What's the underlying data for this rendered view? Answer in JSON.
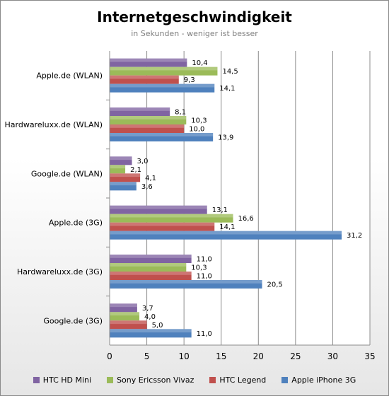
{
  "chart_data": {
    "type": "bar",
    "orientation": "horizontal",
    "title": "Internetgeschwindigkeit",
    "subtitle": "in Sekunden - weniger ist besser",
    "categories": [
      "Apple.de (WLAN)",
      "Hardwareluxx.de (WLAN)",
      "Google.de (WLAN)",
      "Apple.de (3G)",
      "Hardwareluxx.de (3G)",
      "Google.de (3G)"
    ],
    "series": [
      {
        "name": "HTC HD Mini",
        "color": "#8064a2",
        "values": [
          10.4,
          8.1,
          3.0,
          13.1,
          11.0,
          3.7
        ],
        "labels": [
          "10,4",
          "8,1",
          "3,0",
          "13,1",
          "11,0",
          "3,7"
        ]
      },
      {
        "name": "Sony Ericsson Vivaz",
        "color": "#9bbb59",
        "values": [
          14.5,
          10.3,
          2.1,
          16.6,
          10.3,
          4.0
        ],
        "labels": [
          "14,5",
          "10,3",
          "2,1",
          "16,6",
          "10,3",
          "4,0"
        ]
      },
      {
        "name": "HTC Legend",
        "color": "#c0504d",
        "values": [
          9.3,
          10.0,
          4.1,
          14.1,
          11.0,
          5.0
        ],
        "labels": [
          "9,3",
          "10,0",
          "4,1",
          "14,1",
          "11,0",
          "5,0"
        ]
      },
      {
        "name": "Apple iPhone 3G",
        "color": "#4f81bd",
        "values": [
          14.1,
          13.9,
          3.6,
          31.2,
          20.5,
          11.0
        ],
        "labels": [
          "14,1",
          "13,9",
          "3,6",
          "31,2",
          "20,5",
          "11,0"
        ]
      }
    ],
    "xlim": [
      0,
      35
    ],
    "xticks": [
      0,
      5,
      10,
      15,
      20,
      25,
      30,
      35
    ],
    "grid": true,
    "legend_position": "bottom"
  }
}
